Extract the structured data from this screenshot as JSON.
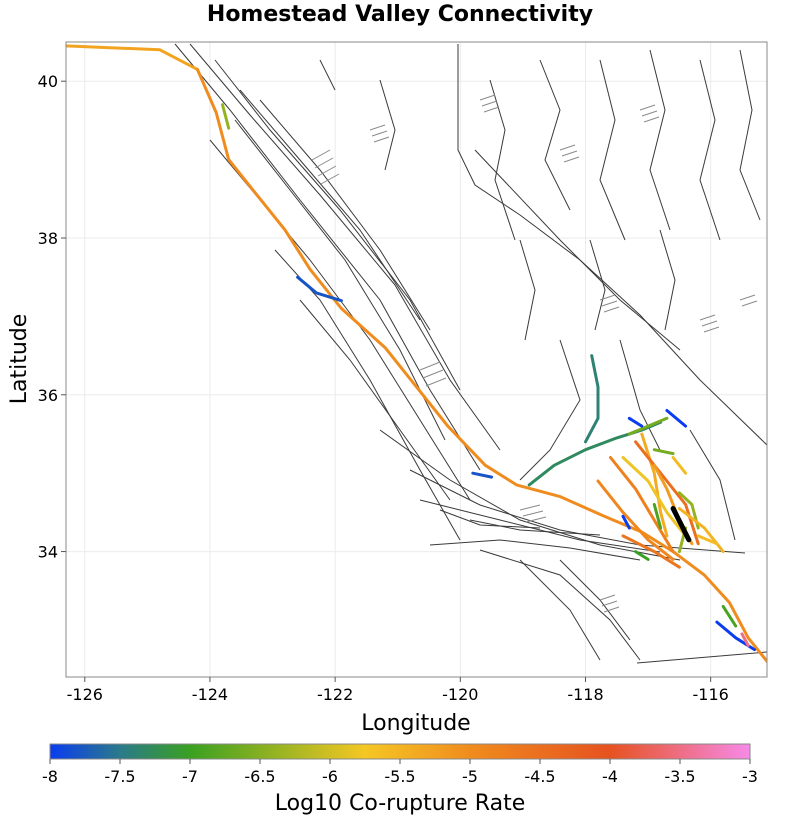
{
  "title": "Homestead Valley Connectivity",
  "map": {
    "x_axis": {
      "label": "Longitude",
      "range": [
        -126.3,
        -115.1
      ],
      "ticks": [
        -126,
        -124,
        -122,
        -120,
        -118,
        -116
      ],
      "tick_labels": [
        "-126",
        "-124",
        "-122",
        "-120",
        "-118",
        "-116"
      ]
    },
    "y_axis": {
      "label": "Latitude",
      "range": [
        32.4,
        40.5
      ],
      "ticks": [
        34,
        36,
        38,
        40
      ],
      "tick_labels": [
        "34",
        "36",
        "38",
        "40"
      ]
    },
    "grid": true
  },
  "colorbar": {
    "label": "Log10 Co-rupture Rate",
    "range": [
      -8,
      -3
    ],
    "ticks": [
      -8,
      -7.5,
      -7,
      -6.5,
      -6,
      -5.5,
      -5,
      -4.5,
      -4,
      -3.5,
      -3
    ],
    "tick_labels": [
      "-8",
      "-7.5",
      "-7",
      "-6.5",
      "-6",
      "-5.5",
      "-5",
      "-4.5",
      "-4",
      "-3.5",
      "-3"
    ],
    "colors": [
      "#0a3cf0",
      "#2b7a8a",
      "#3aa021",
      "#f5c724",
      "#f08c1e",
      "#e65220",
      "#f78ae8"
    ]
  },
  "faults": {
    "background_color": "#333333",
    "source_fault_color": "#000000",
    "ruptures": [
      {
        "rate": -5.3,
        "points": [
          [
            -126.3,
            40.45
          ],
          [
            -124.8,
            40.4
          ],
          [
            -124.2,
            40.15
          ]
        ]
      },
      {
        "rate": -5.0,
        "points": [
          [
            -124.2,
            40.15
          ],
          [
            -123.9,
            39.6
          ],
          [
            -123.7,
            39.0
          ],
          [
            -123.3,
            38.6
          ],
          [
            -122.8,
            38.1
          ],
          [
            -122.4,
            37.6
          ],
          [
            -121.9,
            37.1
          ],
          [
            -121.2,
            36.6
          ],
          [
            -120.6,
            36.0
          ],
          [
            -120.2,
            35.6
          ],
          [
            -119.6,
            35.1
          ],
          [
            -119.1,
            34.85
          ],
          [
            -118.4,
            34.7
          ],
          [
            -117.7,
            34.45
          ],
          [
            -117.1,
            34.25
          ],
          [
            -116.6,
            34.0
          ],
          [
            -116.1,
            33.7
          ],
          [
            -115.7,
            33.35
          ],
          [
            -115.4,
            32.9
          ],
          [
            -115.1,
            32.6
          ]
        ]
      },
      {
        "rate": -6.4,
        "points": [
          [
            -123.8,
            39.7
          ],
          [
            -123.7,
            39.4
          ]
        ]
      },
      {
        "rate": -7.8,
        "points": [
          [
            -122.6,
            37.5
          ],
          [
            -122.3,
            37.3
          ],
          [
            -121.9,
            37.2
          ]
        ]
      },
      {
        "rate": -7.8,
        "points": [
          [
            -119.8,
            35.0
          ],
          [
            -119.5,
            34.95
          ]
        ]
      },
      {
        "rate": -7.3,
        "points": [
          [
            -118.9,
            34.85
          ],
          [
            -118.5,
            35.1
          ],
          [
            -118.0,
            35.3
          ],
          [
            -117.5,
            35.45
          ],
          [
            -117.1,
            35.55
          ],
          [
            -116.8,
            35.65
          ]
        ]
      },
      {
        "rate": -7.4,
        "points": [
          [
            -117.9,
            36.5
          ],
          [
            -117.8,
            36.1
          ],
          [
            -117.8,
            35.7
          ],
          [
            -118.0,
            35.4
          ]
        ]
      },
      {
        "rate": -6.6,
        "points": [
          [
            -117.3,
            35.5
          ],
          [
            -117.0,
            35.6
          ],
          [
            -116.7,
            35.7
          ]
        ]
      },
      {
        "rate": -8.0,
        "points": [
          [
            -116.7,
            35.8
          ],
          [
            -116.4,
            35.6
          ]
        ]
      },
      {
        "rate": -8.0,
        "points": [
          [
            -117.3,
            35.7
          ],
          [
            -117.1,
            35.6
          ]
        ]
      },
      {
        "rate": -6.6,
        "points": [
          [
            -116.9,
            35.3
          ],
          [
            -116.6,
            35.25
          ]
        ]
      },
      {
        "rate": -5.4,
        "points": [
          [
            -117.1,
            35.5
          ],
          [
            -116.9,
            35.0
          ],
          [
            -116.8,
            34.5
          ],
          [
            -116.7,
            34.2
          ]
        ]
      },
      {
        "rate": -5.8,
        "points": [
          [
            -117.4,
            35.2
          ],
          [
            -117.0,
            34.9
          ],
          [
            -116.7,
            34.5
          ],
          [
            -116.4,
            34.2
          ]
        ]
      },
      {
        "rate": -4.5,
        "points": [
          [
            -117.2,
            35.4
          ],
          [
            -116.8,
            35.0
          ],
          [
            -116.4,
            34.6
          ],
          [
            -116.2,
            34.1
          ]
        ]
      },
      {
        "rate": -4.8,
        "points": [
          [
            -117.6,
            35.2
          ],
          [
            -117.2,
            34.8
          ],
          [
            -116.9,
            34.4
          ],
          [
            -116.6,
            34.0
          ]
        ]
      },
      {
        "rate": -4.9,
        "points": [
          [
            -117.8,
            34.9
          ],
          [
            -117.4,
            34.5
          ],
          [
            -117.0,
            34.15
          ],
          [
            -116.6,
            33.9
          ]
        ]
      },
      {
        "rate": -5.2,
        "points": [
          [
            -116.9,
            35.1
          ],
          [
            -116.7,
            34.8
          ],
          [
            -116.5,
            34.4
          ],
          [
            -116.3,
            34.1
          ]
        ]
      },
      {
        "rate": -5.6,
        "points": [
          [
            -116.6,
            35.2
          ],
          [
            -116.4,
            35.0
          ]
        ]
      },
      {
        "rate": -6.4,
        "points": [
          [
            -116.5,
            34.75
          ],
          [
            -116.3,
            34.6
          ],
          [
            -116.2,
            34.3
          ]
        ]
      },
      {
        "rate": -5.5,
        "points": [
          [
            -116.5,
            34.55
          ],
          [
            -116.1,
            34.3
          ],
          [
            -115.8,
            34.0
          ]
        ]
      },
      {
        "rate": -6.9,
        "points": [
          [
            -116.9,
            34.6
          ],
          [
            -116.8,
            34.3
          ]
        ]
      },
      {
        "rate": -6.4,
        "points": [
          [
            -116.4,
            34.3
          ],
          [
            -116.5,
            34.0
          ]
        ]
      },
      {
        "rate": -5.6,
        "points": [
          [
            -116.2,
            34.2
          ],
          [
            -115.9,
            34.1
          ]
        ]
      },
      {
        "rate": -4.6,
        "points": [
          [
            -117.4,
            34.2
          ],
          [
            -116.9,
            34.0
          ],
          [
            -116.5,
            33.8
          ]
        ]
      },
      {
        "rate": -7.0,
        "points": [
          [
            -117.2,
            34.0
          ],
          [
            -117.0,
            33.9
          ]
        ]
      },
      {
        "rate": -8.0,
        "points": [
          [
            -117.4,
            34.45
          ],
          [
            -117.3,
            34.3
          ]
        ]
      },
      {
        "rate": -6.9,
        "points": [
          [
            -115.8,
            33.3
          ],
          [
            -115.6,
            33.05
          ]
        ]
      },
      {
        "rate": -8.0,
        "points": [
          [
            -115.9,
            33.1
          ],
          [
            -115.6,
            32.9
          ],
          [
            -115.3,
            32.75
          ]
        ]
      },
      {
        "rate": -3.5,
        "points": [
          [
            -115.5,
            32.95
          ],
          [
            -115.4,
            32.8
          ]
        ]
      }
    ],
    "source_fault": [
      [
        -116.6,
        34.55
      ],
      [
        -116.35,
        34.15
      ]
    ]
  }
}
